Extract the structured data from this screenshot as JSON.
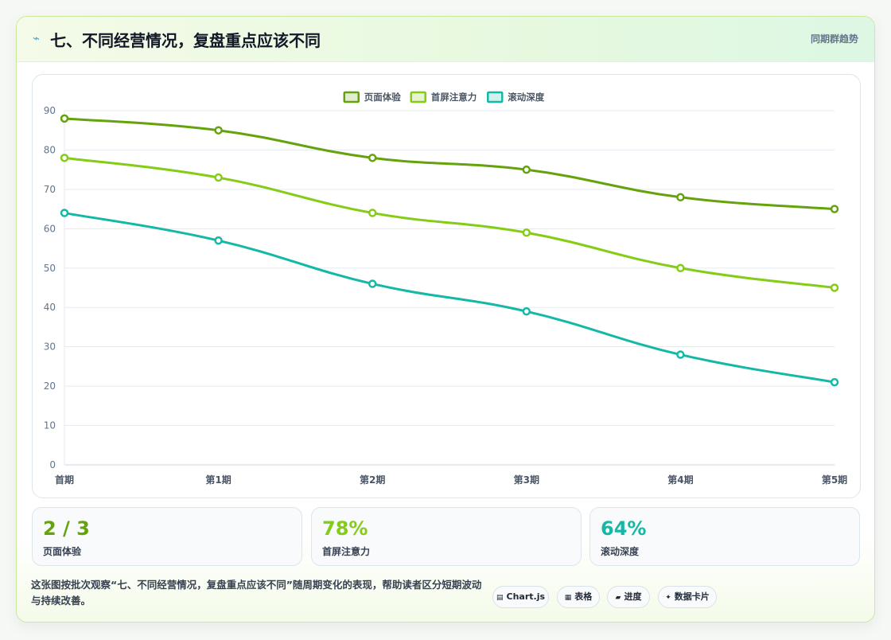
{
  "header": {
    "icon": "lightning-icon",
    "title": "七、不同经营情况，复盘重点应该不同",
    "badge": "同期群趋势"
  },
  "colors": {
    "series1": "#65a30d",
    "series2": "#84cc16",
    "series3": "#14b8a6",
    "grid": "#e5eaf0",
    "tick": "#64748b"
  },
  "chart_data": {
    "type": "line",
    "categories": [
      "首期",
      "第1期",
      "第2期",
      "第3期",
      "第4期",
      "第5期"
    ],
    "series": [
      {
        "name": "页面体验",
        "values": [
          88,
          85,
          78,
          75,
          68,
          65
        ]
      },
      {
        "name": "首屏注意力",
        "values": [
          78,
          73,
          64,
          59,
          50,
          45
        ]
      },
      {
        "name": "滚动深度",
        "values": [
          64,
          57,
          46,
          39,
          28,
          21
        ]
      }
    ],
    "ylim": [
      0,
      90
    ],
    "yticks": [
      0,
      10,
      20,
      30,
      40,
      50,
      60,
      70,
      80,
      90
    ],
    "grid": true,
    "legend": "top-center"
  },
  "stats": [
    {
      "value": "2 / 3",
      "label": "页面体验"
    },
    {
      "value": "78%",
      "label": "首屏注意力"
    },
    {
      "value": "64%",
      "label": "滚动深度"
    }
  ],
  "footer": {
    "text": "这张图按批次观察“七、不同经营情况，复盘重点应该不同”随周期变化的表现，帮助读者区分短期波动与持续改善。",
    "pills": [
      {
        "icon": "chart-icon",
        "glyph": "▤",
        "label": "Chart.js"
      },
      {
        "icon": "table-icon",
        "glyph": "▦",
        "label": "表格"
      },
      {
        "icon": "progress-icon",
        "glyph": "▰",
        "label": "进度"
      },
      {
        "icon": "sparkle-icon",
        "glyph": "✦",
        "label": "数据卡片"
      }
    ]
  }
}
